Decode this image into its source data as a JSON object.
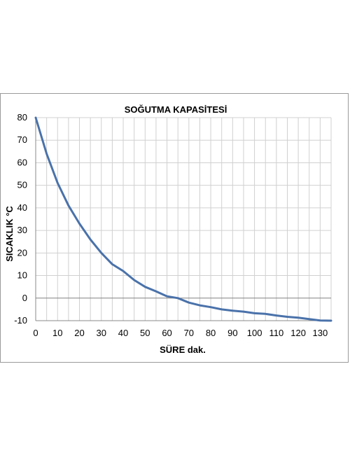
{
  "chart_data": {
    "type": "line",
    "title": "SOĞUTMA KAPASİTESİ",
    "xlabel": "SÜRE dak.",
    "ylabel": "SICAKLIK °C",
    "xlim": [
      0,
      135
    ],
    "ylim": [
      -10,
      80
    ],
    "x_ticks": [
      0,
      10,
      20,
      30,
      40,
      50,
      60,
      70,
      80,
      90,
      100,
      110,
      120,
      130
    ],
    "y_ticks": [
      -10,
      0,
      10,
      20,
      30,
      40,
      50,
      60,
      70,
      80
    ],
    "grid": true,
    "legend": "none",
    "colors": {
      "line": "#4a72aa",
      "grid": "#d0d0d0",
      "axis": "#888888",
      "zero_line": "#808080"
    },
    "series": [
      {
        "x": [
          0,
          5,
          10,
          15,
          20,
          25,
          30,
          35,
          40,
          45,
          50,
          55,
          60,
          65,
          70,
          75,
          80,
          85,
          90,
          95,
          100,
          105,
          110,
          115,
          120,
          125,
          130,
          135
        ],
        "y": [
          80,
          64,
          51,
          41,
          33,
          26,
          20,
          15,
          12,
          8,
          5,
          3,
          0.8,
          0,
          -2,
          -3.2,
          -4,
          -5,
          -5.6,
          -6,
          -6.7,
          -7,
          -7.7,
          -8.3,
          -8.7,
          -9.3,
          -9.9,
          -10
        ]
      }
    ]
  }
}
